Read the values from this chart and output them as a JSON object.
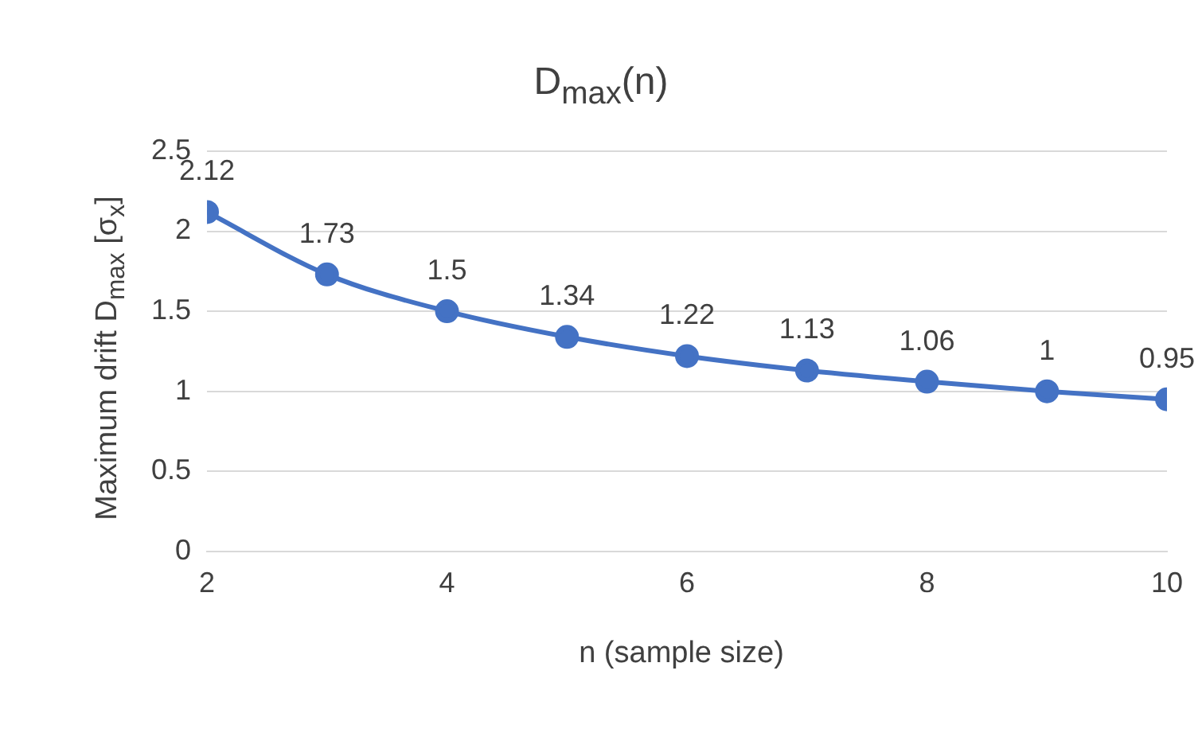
{
  "chart_data": {
    "type": "line",
    "title": "D$_{max}$(n)",
    "xlabel": "n (sample size)",
    "ylabel": "Maximum drift D$_{max}$ [σ$_{x}$]",
    "x": [
      2,
      3,
      4,
      5,
      6,
      7,
      8,
      9,
      10
    ],
    "series": [
      {
        "color": "#4472c4",
        "values": [
          2.12,
          1.73,
          1.5,
          1.34,
          1.22,
          1.13,
          1.06,
          1,
          0.95
        ]
      }
    ],
    "xlim": [
      2,
      10
    ],
    "xticks": [
      2,
      4,
      6,
      8,
      10
    ],
    "ylim": [
      0,
      2.5
    ],
    "yticks": [
      0,
      0.5,
      1,
      1.5,
      2,
      2.5
    ],
    "grid": "y",
    "marker": "circle",
    "line_style": "solid",
    "data_labels": true,
    "legend": false
  }
}
